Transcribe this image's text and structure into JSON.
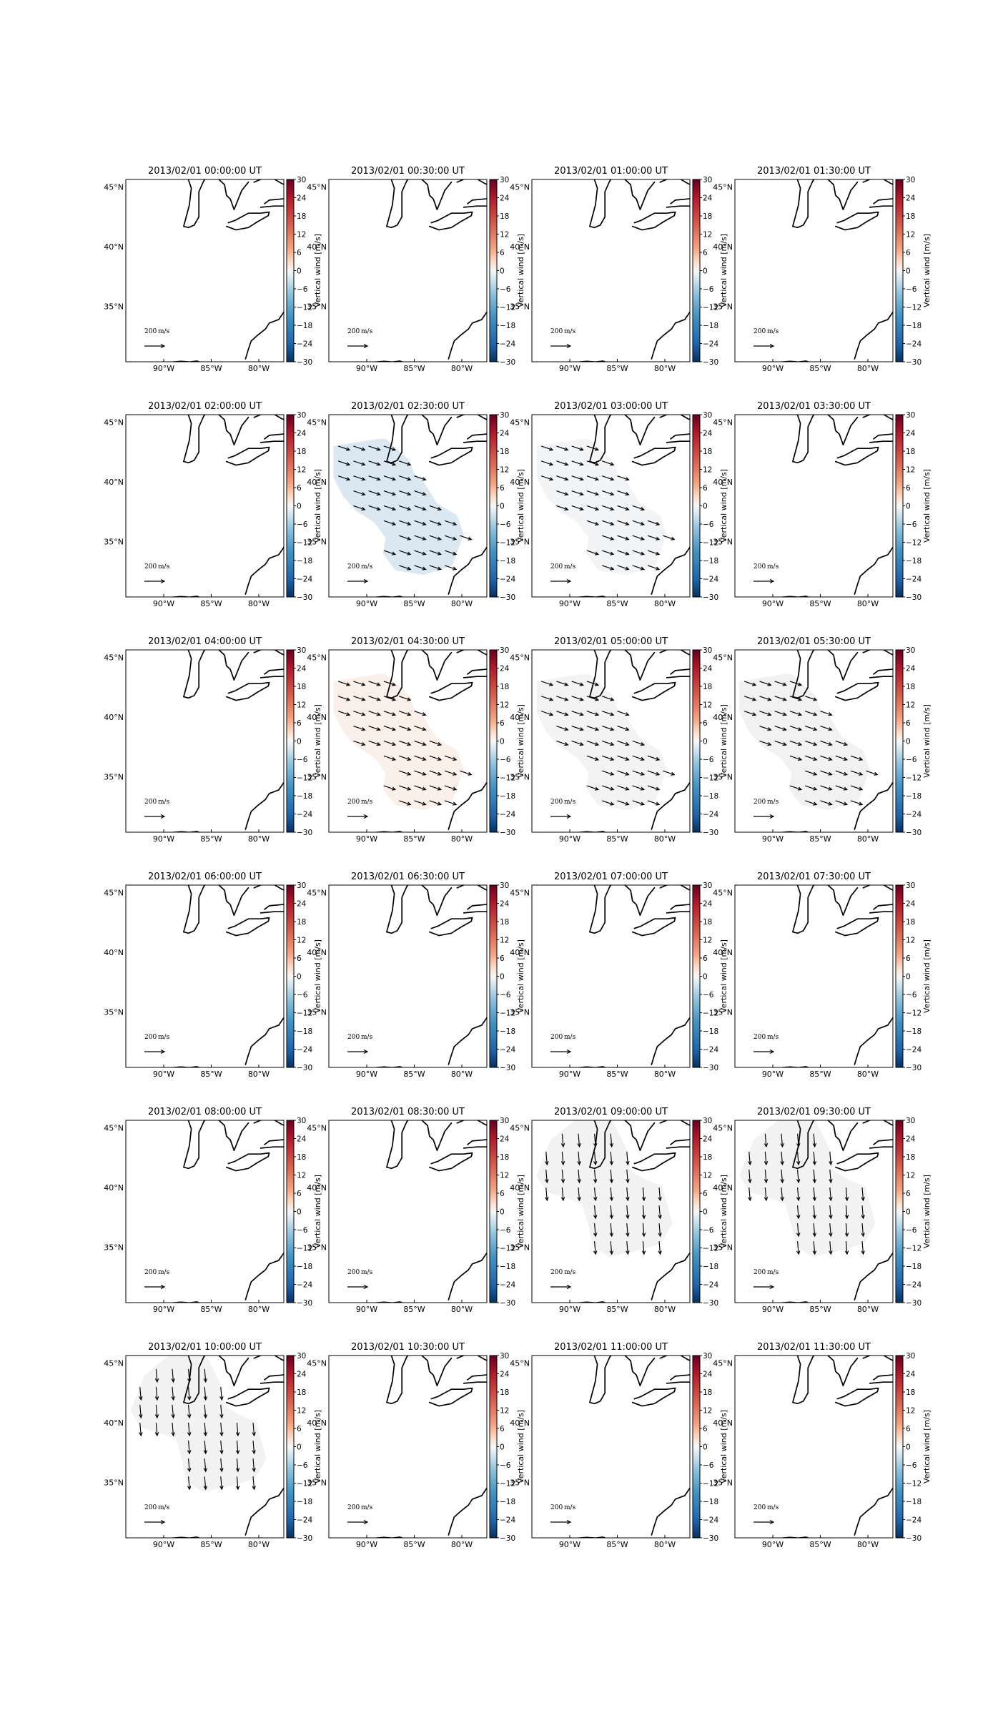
{
  "chart_data": {
    "type": "vector_field_map",
    "colorbar": {
      "label": "Vertical wind [m/s]",
      "ticks": [
        "30",
        "24",
        "18",
        "12",
        "6",
        "0",
        "−6",
        "−12",
        "−18",
        "−24",
        "−30"
      ],
      "range": [
        -30,
        30
      ],
      "colormap": "red-white-blue"
    },
    "axes": {
      "lat_ticks": [
        "45°N",
        "40°N",
        "35°N"
      ],
      "lon_ticks": [
        "90°W",
        "85°W",
        "80°W"
      ]
    },
    "reference_arrow": {
      "value": "200",
      "unit": "m/s"
    },
    "panels": [
      {
        "title": "2013/02/01 00:00:00 UT",
        "field": "none"
      },
      {
        "title": "2013/02/01 00:30:00 UT",
        "field": "none"
      },
      {
        "title": "2013/02/01 01:00:00 UT",
        "field": "none"
      },
      {
        "title": "2013/02/01 01:30:00 UT",
        "field": "none"
      },
      {
        "title": "2013/02/01 02:00:00 UT",
        "field": "none"
      },
      {
        "title": "2013/02/01 02:30:00 UT",
        "field": "se",
        "fill": "#dbe8f2",
        "vertical_wind": -3
      },
      {
        "title": "2013/02/01 03:00:00 UT",
        "field": "se",
        "fill": "#f3f4f6",
        "vertical_wind": -0.5
      },
      {
        "title": "2013/02/01 03:30:00 UT",
        "field": "none"
      },
      {
        "title": "2013/02/01 04:00:00 UT",
        "field": "none"
      },
      {
        "title": "2013/02/01 04:30:00 UT",
        "field": "se",
        "fill": "#fbefe9",
        "vertical_wind": 0.8
      },
      {
        "title": "2013/02/01 05:00:00 UT",
        "field": "se",
        "fill": "#f3f3f3",
        "vertical_wind": 0
      },
      {
        "title": "2013/02/01 05:30:00 UT",
        "field": "se",
        "fill": "#f1f1f1",
        "vertical_wind": 0
      },
      {
        "title": "2013/02/01 06:00:00 UT",
        "field": "none"
      },
      {
        "title": "2013/02/01 06:30:00 UT",
        "field": "none"
      },
      {
        "title": "2013/02/01 07:00:00 UT",
        "field": "none"
      },
      {
        "title": "2013/02/01 07:30:00 UT",
        "field": "none"
      },
      {
        "title": "2013/02/01 08:00:00 UT",
        "field": "none"
      },
      {
        "title": "2013/02/01 08:30:00 UT",
        "field": "none"
      },
      {
        "title": "2013/02/01 09:00:00 UT",
        "field": "s",
        "fill": "#f2f2f2",
        "vertical_wind": 0
      },
      {
        "title": "2013/02/01 09:30:00 UT",
        "field": "s",
        "fill": "#f2f2f2",
        "vertical_wind": 0
      },
      {
        "title": "2013/02/01 10:00:00 UT",
        "field": "s",
        "fill": "#f2f2f2",
        "vertical_wind": 0
      },
      {
        "title": "2013/02/01 10:30:00 UT",
        "field": "none"
      },
      {
        "title": "2013/02/01 11:00:00 UT",
        "field": "none"
      },
      {
        "title": "2013/02/01 11:30:00 UT",
        "field": "none"
      }
    ]
  }
}
